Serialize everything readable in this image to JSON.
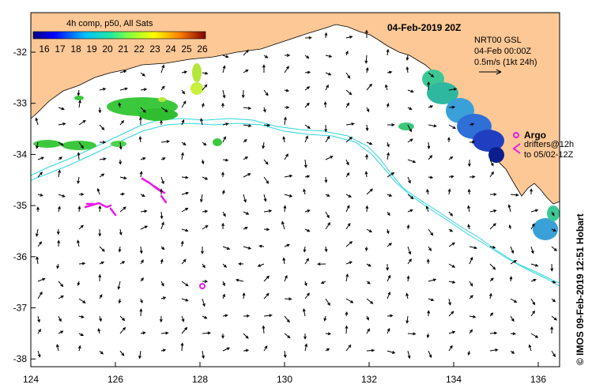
{
  "map": {
    "title": "04-Feb-2019 20Z",
    "colorbar": {
      "label": "4h comp, p50, All Sats",
      "ticks": [
        "16",
        "17",
        "18",
        "19",
        "20",
        "21",
        "22",
        "23",
        "24",
        "25",
        "26"
      ]
    },
    "info": {
      "line1": "NRT00 GSL",
      "line2": "04-Feb 00:00Z",
      "line3": "0.5m/s (1kt 24h)"
    },
    "argo": {
      "label": "Argo",
      "drifters_line1": "drifters@12h",
      "drifters_line2": "to 05/02-12Z"
    },
    "credit": "© IMOS 09-Feb-2019 12:51 Hobart",
    "lon_ticks": [
      "124",
      "126",
      "128",
      "130",
      "132",
      "134",
      "136"
    ],
    "lat_ticks": [
      "-32",
      "-33",
      "-34",
      "-35",
      "-36",
      "-37",
      "-38"
    ],
    "colors": {
      "land": "#fdc896",
      "contour": "#2fd6dc",
      "argo": "#e81be8",
      "arrows": "#000000"
    }
  }
}
